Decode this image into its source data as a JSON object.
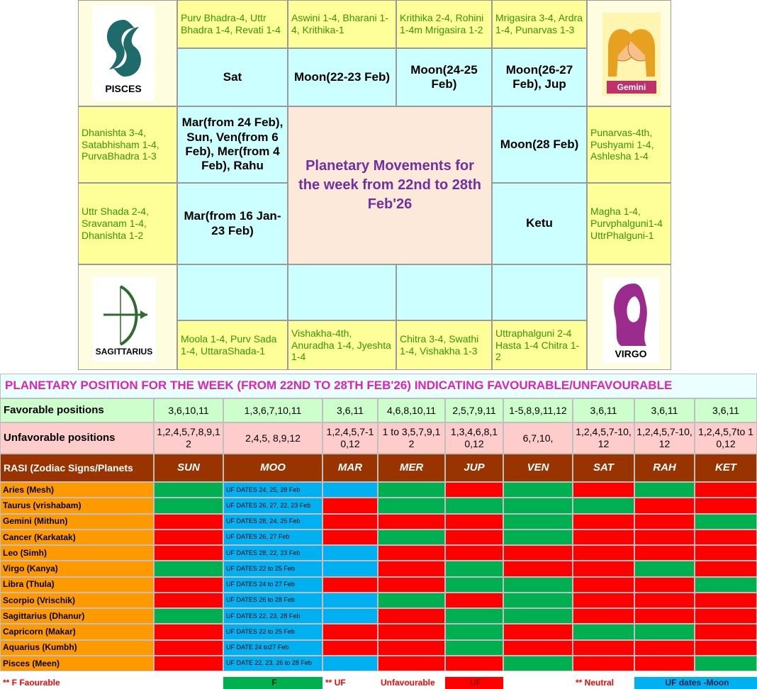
{
  "zodiac": {
    "pisces": "PISCES",
    "gemini": "Gemini",
    "sagittarius": "SAGITTARIUS",
    "virgo": "VIRGO"
  },
  "nakshatras": [
    "Purv Bhadra-4, Uttr Bhadra 1-4, Revati 1-4",
    "Aswini 1-4, Bharani 1-4, Krithika-1",
    "Krithika 2-4, Rohini 1-4m Mrigasira 1-2",
    "Mrigasira 3-4, Ardra 1-4, Punarvas 1-3",
    "Punarvas-4th, Pushyami 1-4, Ashlesha 1-4",
    "Magha 1-4, Purvphalguni1-4 UttrPhalguni-1",
    "Uttraphalguni 2-4 Hasta 1-4 Chitra 1-2",
    "Chitra 3-4, Swathi 1-4, Vishakha 1-3",
    "Vishakha-4th, Anuradha 1-4, Jyeshta 1-4",
    "Moola 1-4, Purv Sada 1-4, UttaraShada-1",
    "Uttr Shada 2-4, Sravanam 1-4, Dhanishta 1-2",
    "Dhanishta 3-4, Satabhisham 1-4, PurvaBhadra 1-3"
  ],
  "planets": [
    "Sat",
    "Moon(22-23 Feb)",
    "Moon(24-25 Feb)",
    "Moon(26-27 Feb), Jup",
    "Moon(28 Feb)",
    "Ketu",
    "Mar(from 16 Jan-23 Feb)",
    "Mar(from 24 Feb), Sun, Ven(from 6 Feb), Mer(from 4 Feb), Rahu"
  ],
  "center_title": "Planetary Movements for the week from 22nd to 28th Feb'26",
  "table": {
    "title": "PLANETARY POSITION FOR THE WEEK (FROM 22ND TO 28TH FEB'26) INDICATING FAVOURABLE/UNFAVOURABLE",
    "favorable_label": "Favorable positions",
    "favorable": [
      "3,6,10,11",
      "1,3,6,7,10,11",
      "3,6,11",
      "4,6,8,10,11",
      "2,5,7,9,11",
      "1-5,8,9,11,12",
      "3,6,11",
      "3,6,11",
      "3,6,11"
    ],
    "unfavorable_label": "Unfavorable positions",
    "unfavorable": [
      "1,2,4,5,7,8,9,12",
      "2,4,5, 8,9,12",
      "1,2,4,5,7-10,12",
      "1 to 3,5,7,9,12",
      "1,3,4,6,8,10,12",
      "6,7,10,",
      "1,2,4,5,7-10,12",
      "1,2,4,5,7-10,12",
      "1,2,4,5,7to 10,12"
    ],
    "header_label": "RASI (Zodiac Signs/Planets",
    "planets": [
      "SUN",
      "MOO",
      "MAR",
      "MER",
      "JUP",
      "VEN",
      "SAT",
      "RAH",
      "KET"
    ],
    "moon_color": "#00b0f0",
    "rows": [
      {
        "sign": "Aries (Mesh)",
        "moon": "UF DATES 24, 25, 28  Feb",
        "colors": [
          "#00b050",
          "#00b0f0",
          "#00b050",
          "#ff0000",
          "#00b050",
          "#ff0000",
          "#00b050",
          "#ff0000"
        ]
      },
      {
        "sign": "Taurus (vrishabam)",
        "moon": "UF DATES 26, 27, 22, 23 Feb",
        "colors": [
          "#00b050",
          "#ff0000",
          "#00b050",
          "#00b050",
          "#00b050",
          "#00b050",
          "#ff0000",
          "#ff0000"
        ]
      },
      {
        "sign": "Gemini (Mithun)",
        "moon": "UF DATES  28, 24, 25 Feb",
        "colors": [
          "#ff0000",
          "#ff0000",
          "#ff0000",
          "#ff0000",
          "#00b050",
          "#ff0000",
          "#ff0000",
          "#00b050"
        ]
      },
      {
        "sign": "Cancer (Karkatak)",
        "moon": "UF DATES 26, 27 Feb",
        "colors": [
          "#ff0000",
          "#ff0000",
          "#00b050",
          "#ff0000",
          "#00b050",
          "#ff0000",
          "#ff0000",
          "#ff0000"
        ]
      },
      {
        "sign": "Leo (Simh)",
        "moon": "UF DATES 28, 22, 23 Feb",
        "colors": [
          "#ff0000",
          "#00b0f0",
          "#ff0000",
          "#ff0000",
          "#ff0000",
          "#ff0000",
          "#ff0000",
          "#ff0000"
        ]
      },
      {
        "sign": "Virgo (Kanya)",
        "moon": "UF DATES 22 to 25 Feb",
        "colors": [
          "#00b050",
          "#00b0f0",
          "#ff0000",
          "#00b050",
          "#ff0000",
          "#ff0000",
          "#00b050",
          "#ff0000"
        ]
      },
      {
        "sign": "Libra (Thula)",
        "moon": "UF DATES 24 to 27 Feb",
        "colors": [
          "#ff0000",
          "#ff0000",
          "#ff0000",
          "#00b050",
          "#00b050",
          "#ff0000",
          "#ff0000",
          "#00b050"
        ]
      },
      {
        "sign": "Scorpio (Vrischik)",
        "moon": "UF DATES 26 to 28 Feb",
        "colors": [
          "#ff0000",
          "#00b0f0",
          "#00b050",
          "#ff0000",
          "#00b050",
          "#ff0000",
          "#ff0000",
          "#ff0000"
        ]
      },
      {
        "sign": "Sagittarius (Dhanur)",
        "moon": "UF DATES 22, 23, 28 Feb",
        "colors": [
          "#00b050",
          "#00b0f0",
          "#ff0000",
          "#00b050",
          "#00b050",
          "#ff0000",
          "#ff0000",
          "#ff0000"
        ]
      },
      {
        "sign": "Capricorn (Makar)",
        "moon": "UF DATES 22 to 25 Feb",
        "colors": [
          "#ff0000",
          "#ff0000",
          "#ff0000",
          "#00b050",
          "#ff0000",
          "#00b050",
          "#00b050",
          "#ff0000"
        ]
      },
      {
        "sign": "Aquarius (Kumbh)",
        "moon": "UF DATE 24 to27 Feb",
        "colors": [
          "#ff0000",
          "#ff0000",
          "#ff0000",
          "#00b050",
          "#ff0000",
          "#ff0000",
          "#ff0000",
          "#ff0000"
        ]
      },
      {
        "sign": "Pisces (Meen)",
        "moon": "UF DATE 22, 23, 26 to 28 Feb",
        "colors": [
          "#ff0000",
          "#00b0f0",
          "#ff0000",
          "#ff0000",
          "#00b050",
          "#ff0000",
          "#ff0000",
          "#00b050"
        ]
      }
    ]
  },
  "legend": [
    {
      "text": "** F   Faourable",
      "color": "#ff0000"
    },
    {
      "text": "F",
      "color": "#003300",
      "background": "#00b050"
    },
    {
      "text": "** UF",
      "color": "#ff0000"
    },
    {
      "text": "Unfavourable",
      "color": "#ff0000"
    },
    {
      "text": "UF",
      "color": "#990000",
      "background": "#ff0000"
    },
    {
      "text": "** Neutral",
      "color": "#ff0000"
    },
    {
      "text": "UF dates -Moon",
      "color": "#002244",
      "background": "#00b0f0"
    }
  ]
}
